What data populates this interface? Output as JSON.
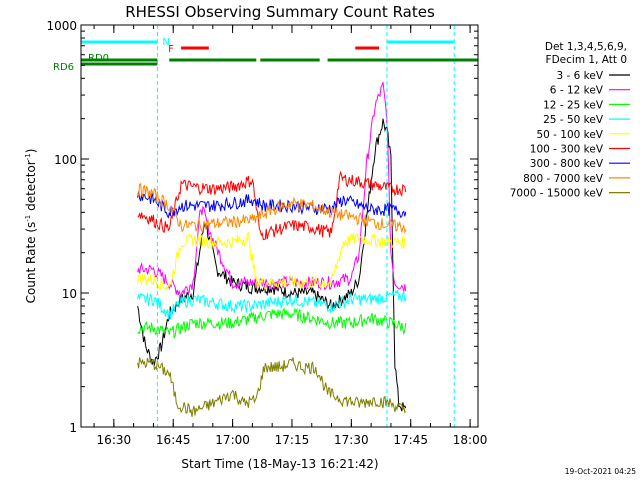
{
  "chart_data": {
    "type": "line",
    "title": "RHESSI Observing Summary Count Rates",
    "xlabel": "Start Time (18-May-13 16:21:42)",
    "ylabel": "Count Rate (s⁻¹ detector⁻¹)",
    "ylabel_parts": {
      "main": "Count Rate (s",
      "sup1": "-1",
      "mid": " detector",
      "sup2": "-1",
      "end": ")"
    },
    "y_scale": "log",
    "ylim": [
      1,
      1000
    ],
    "xlim": [
      "16:21:42",
      "18:02"
    ],
    "x_ticks": [
      "16:30",
      "16:45",
      "17:00",
      "17:15",
      "17:30",
      "17:45",
      "18:00"
    ],
    "y_ticks": [
      "1",
      "10",
      "100",
      "1000"
    ],
    "legend_header": [
      "Det 1,3,4,5,6,9,",
      "FDecim 1, Att 0"
    ],
    "legend_placement": "right",
    "timestamp": "19-Oct-2021 04:25",
    "series": [
      {
        "name": "3 - 6 keV",
        "color": "#000000",
        "points": [
          [
            "16:36",
            8
          ],
          [
            "16:38",
            4
          ],
          [
            "16:40",
            3
          ],
          [
            "16:42",
            4
          ],
          [
            "16:44",
            7
          ],
          [
            "16:47",
            9
          ],
          [
            "16:50",
            10
          ],
          [
            "16:53",
            35
          ],
          [
            "16:56",
            15
          ],
          [
            "17:00",
            12
          ],
          [
            "17:05",
            11
          ],
          [
            "17:10",
            11
          ],
          [
            "17:15",
            10
          ],
          [
            "17:20",
            10
          ],
          [
            "17:25",
            8
          ],
          [
            "17:30",
            10
          ],
          [
            "17:32",
            13
          ],
          [
            "17:34",
            40
          ],
          [
            "17:36",
            120
          ],
          [
            "17:38",
            190
          ],
          [
            "17:39",
            160
          ],
          [
            "17:40",
            100
          ],
          [
            "17:41",
            3
          ],
          [
            "17:42",
            1.5
          ],
          [
            "17:44",
            1.3
          ]
        ]
      },
      {
        "name": "6 - 12 keV",
        "color": "#ff00ff",
        "points": [
          [
            "16:36",
            15
          ],
          [
            "16:40",
            15
          ],
          [
            "16:44",
            12
          ],
          [
            "16:47",
            10
          ],
          [
            "16:50",
            12
          ],
          [
            "16:52",
            45
          ],
          [
            "16:55",
            25
          ],
          [
            "17:00",
            12
          ],
          [
            "17:05",
            12
          ],
          [
            "17:10",
            12
          ],
          [
            "17:15",
            12
          ],
          [
            "17:20",
            12
          ],
          [
            "17:25",
            12
          ],
          [
            "17:30",
            13
          ],
          [
            "17:32",
            20
          ],
          [
            "17:34",
            100
          ],
          [
            "17:36",
            250
          ],
          [
            "17:38",
            350
          ],
          [
            "17:39",
            200
          ],
          [
            "17:40",
            20
          ],
          [
            "17:41",
            12
          ],
          [
            "17:44",
            11
          ]
        ]
      },
      {
        "name": "12 - 25 keV",
        "color": "#00ff00",
        "points": [
          [
            "16:36",
            5.5
          ],
          [
            "16:40",
            5.5
          ],
          [
            "16:44",
            5
          ],
          [
            "16:47",
            5.5
          ],
          [
            "16:50",
            6
          ],
          [
            "16:55",
            6
          ],
          [
            "17:00",
            6
          ],
          [
            "17:05",
            6.5
          ],
          [
            "17:10",
            7
          ],
          [
            "17:15",
            7
          ],
          [
            "17:20",
            6.5
          ],
          [
            "17:25",
            6
          ],
          [
            "17:30",
            6
          ],
          [
            "17:35",
            6.5
          ],
          [
            "17:40",
            6
          ],
          [
            "17:44",
            5.5
          ]
        ]
      },
      {
        "name": "25 - 50 keV",
        "color": "#00ffff",
        "points": [
          [
            "16:36",
            9
          ],
          [
            "16:40",
            9
          ],
          [
            "16:44",
            7
          ],
          [
            "16:47",
            8.5
          ],
          [
            "16:50",
            9
          ],
          [
            "16:55",
            8.5
          ],
          [
            "17:00",
            8
          ],
          [
            "17:05",
            8
          ],
          [
            "17:10",
            8.5
          ],
          [
            "17:15",
            9
          ],
          [
            "17:20",
            8.5
          ],
          [
            "17:25",
            8
          ],
          [
            "17:30",
            9
          ],
          [
            "17:35",
            9
          ],
          [
            "17:40",
            9.5
          ],
          [
            "17:44",
            9.5
          ]
        ]
      },
      {
        "name": "50 - 100 keV",
        "color": "#ffff00",
        "points": [
          [
            "16:36",
            13
          ],
          [
            "16:40",
            12.5
          ],
          [
            "16:44",
            11
          ],
          [
            "16:47",
            24
          ],
          [
            "16:50",
            25
          ],
          [
            "16:55",
            24
          ],
          [
            "17:00",
            24
          ],
          [
            "17:04",
            26
          ],
          [
            "17:06",
            12
          ],
          [
            "17:10",
            12
          ],
          [
            "17:15",
            12
          ],
          [
            "17:20",
            12
          ],
          [
            "17:25",
            12
          ],
          [
            "17:28",
            24
          ],
          [
            "17:32",
            26
          ],
          [
            "17:35",
            25
          ],
          [
            "17:40",
            24
          ],
          [
            "17:44",
            24
          ]
        ]
      },
      {
        "name": "100 - 300 keV",
        "color": "#ff0000",
        "points": [
          [
            "16:36",
            40
          ],
          [
            "16:40",
            35
          ],
          [
            "16:44",
            30
          ],
          [
            "16:47",
            65
          ],
          [
            "16:50",
            62
          ],
          [
            "16:55",
            60
          ],
          [
            "17:00",
            62
          ],
          [
            "17:05",
            70
          ],
          [
            "17:07",
            27
          ],
          [
            "17:10",
            29
          ],
          [
            "17:15",
            32
          ],
          [
            "17:20",
            31
          ],
          [
            "17:25",
            28
          ],
          [
            "17:27",
            72
          ],
          [
            "17:32",
            68
          ],
          [
            "17:35",
            65
          ],
          [
            "17:40",
            60
          ],
          [
            "17:44",
            60
          ]
        ]
      },
      {
        "name": "300 - 800 keV",
        "color": "#0000ff",
        "points": [
          [
            "16:36",
            55
          ],
          [
            "16:40",
            50
          ],
          [
            "16:44",
            40
          ],
          [
            "16:47",
            45
          ],
          [
            "16:50",
            45
          ],
          [
            "16:55",
            45
          ],
          [
            "17:00",
            47
          ],
          [
            "17:05",
            50
          ],
          [
            "17:08",
            45
          ],
          [
            "17:12",
            45
          ],
          [
            "17:15",
            45
          ],
          [
            "17:20",
            43
          ],
          [
            "17:25",
            43
          ],
          [
            "17:28",
            50
          ],
          [
            "17:32",
            45
          ],
          [
            "17:35",
            42
          ],
          [
            "17:40",
            42
          ],
          [
            "17:44",
            40
          ]
        ]
      },
      {
        "name": "800 - 7000 keV",
        "color": "#ff8800",
        "points": [
          [
            "16:36",
            60
          ],
          [
            "16:40",
            55
          ],
          [
            "16:44",
            45
          ],
          [
            "16:47",
            32
          ],
          [
            "16:50",
            32
          ],
          [
            "16:55",
            33
          ],
          [
            "17:00",
            34
          ],
          [
            "17:05",
            35
          ],
          [
            "17:10",
            42
          ],
          [
            "17:15",
            47
          ],
          [
            "17:20",
            45
          ],
          [
            "17:25",
            40
          ],
          [
            "17:28",
            38
          ],
          [
            "17:32",
            36
          ],
          [
            "17:35",
            34
          ],
          [
            "17:40",
            32
          ],
          [
            "17:44",
            31
          ]
        ]
      },
      {
        "name": "7000 - 15000 keV",
        "color": "#808000",
        "points": [
          [
            "16:36",
            3
          ],
          [
            "16:40",
            3
          ],
          [
            "16:44",
            2.5
          ],
          [
            "16:46",
            1.5
          ],
          [
            "16:50",
            1.3
          ],
          [
            "16:55",
            1.5
          ],
          [
            "17:00",
            1.8
          ],
          [
            "17:03",
            1.5
          ],
          [
            "17:06",
            1.6
          ],
          [
            "17:08",
            2.8
          ],
          [
            "17:12",
            2.8
          ],
          [
            "17:15",
            3
          ],
          [
            "17:18",
            2.8
          ],
          [
            "17:21",
            2.8
          ],
          [
            "17:24",
            1.8
          ],
          [
            "17:28",
            1.6
          ],
          [
            "17:32",
            1.5
          ],
          [
            "17:36",
            1.6
          ],
          [
            "17:40",
            1.5
          ],
          [
            "17:44",
            1.3
          ]
        ]
      }
    ],
    "annotations": {
      "n_label": "N",
      "f_label": "F",
      "rd0_label": "RD0",
      "rd6_label": "RD6",
      "night_bar": {
        "color": "#00ffff",
        "segments": [
          [
            "16:21:42",
            "16:41"
          ],
          [
            "17:39",
            "17:56"
          ]
        ]
      },
      "flare_bar": {
        "color": "#ff0000",
        "segments": [
          [
            "16:47",
            "16:54"
          ],
          [
            "17:31",
            "17:37"
          ]
        ]
      },
      "rd6_bar": {
        "color": "#008000",
        "segments": [
          [
            "16:21:42",
            "16:41"
          ],
          [
            "16:44",
            "17:06"
          ],
          [
            "17:07",
            "17:22"
          ],
          [
            "17:24",
            "18:02"
          ]
        ]
      },
      "vlines": {
        "color": "#00ffff",
        "times": [
          "16:41",
          "17:39",
          "17:56"
        ]
      }
    }
  }
}
